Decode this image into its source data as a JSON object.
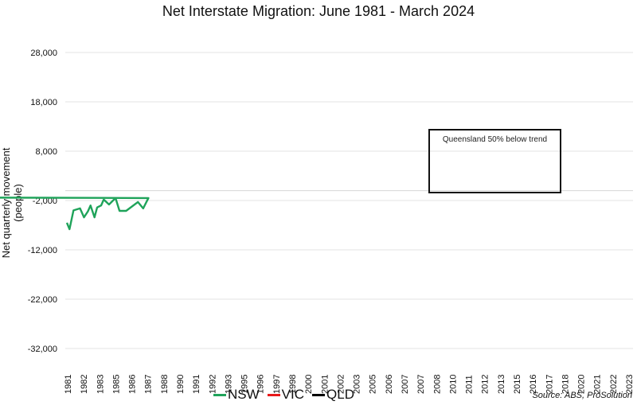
{
  "chart_data": {
    "type": "line",
    "title": "Net Interstate Migration: June 1981 - March 2024",
    "xlabel": "",
    "ylabel": "Net quarterly movement (people)",
    "ylim": [
      -32000,
      28000
    ],
    "y_ticks": [
      "28,000",
      "18,000",
      "8,000",
      "-2,000",
      "-12,000",
      "-22,000",
      "-32,000"
    ],
    "y_tick_values": [
      28000,
      18000,
      8000,
      -2000,
      -12000,
      -22000,
      -32000
    ],
    "x_tick_labels": [
      "1981",
      "1982",
      "1983",
      "1985",
      "1986",
      "1987",
      "1988",
      "1990",
      "1991",
      "1992",
      "1993",
      "1995",
      "1996",
      "1997",
      "1998",
      "2000",
      "2001",
      "2002",
      "2003",
      "2005",
      "2006",
      "2007",
      "2007",
      "2008",
      "2010",
      "2011",
      "2012",
      "2013",
      "2015",
      "2016",
      "2017",
      "2018",
      "2020",
      "2021",
      "2022",
      "2023"
    ],
    "grid": true,
    "legend_position": "bottom",
    "annotation": "Queensland 50% below trend",
    "source": "Source: ABS, ProSolution",
    "series": [
      {
        "name": "NSW",
        "color": "#1fa35a",
        "points": [
          [
            1981.4,
            -6500
          ],
          [
            1981.6,
            -7800
          ],
          [
            1981.9,
            -4000
          ],
          [
            1982.4,
            -3600
          ],
          [
            1982.7,
            -5400
          ],
          [
            1983.0,
            -4200
          ],
          [
            1983.2,
            -3000
          ],
          [
            1983.5,
            -5400
          ],
          [
            1983.7,
            -3400
          ],
          [
            1984.0,
            -3000
          ],
          [
            1984.2,
            -1800
          ],
          [
            1984.6,
            -2800
          ],
          [
            1985.1,
            -1500
          ],
          [
            1985.4,
            -4100
          ],
          [
            1985.9,
            -4100
          ],
          [
            1986.8,
            -2300
          ],
          [
            1987.2,
            -3600
          ],
          [
            1987.6,
            -1500
          ],
          [
            1788.0,
            0
          ]
        ]
      },
      {
        "name": "VIC",
        "color": "#e8191a",
        "points": []
      },
      {
        "name": "QLD",
        "color": "#000000",
        "points": []
      }
    ]
  }
}
